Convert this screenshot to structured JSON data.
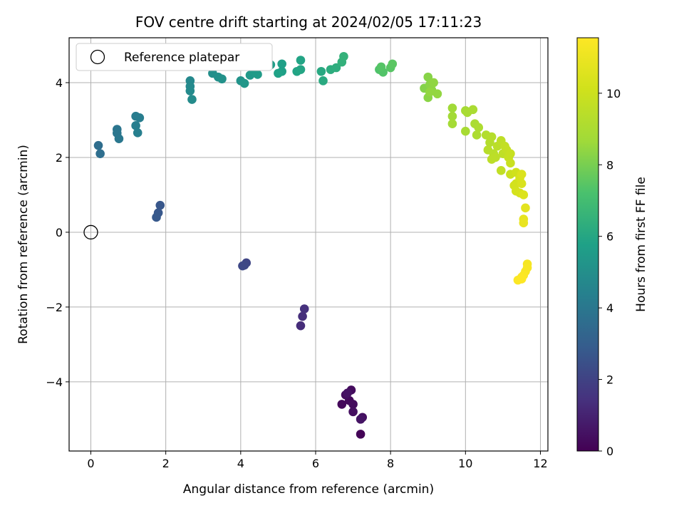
{
  "chart_data": {
    "type": "scatter",
    "title": "FOV centre drift starting at 2024/02/05 17:11:23",
    "xlabel": "Angular distance from reference (arcmin)",
    "ylabel": "Rotation from reference (arcmin)",
    "xlim": [
      -0.58,
      12.2
    ],
    "ylim": [
      -5.85,
      5.2
    ],
    "xticks": [
      0,
      2,
      4,
      6,
      8,
      10,
      12
    ],
    "yticks": [
      -4,
      -2,
      0,
      2,
      4
    ],
    "grid": true,
    "legend": {
      "location": "upper-left",
      "entries": [
        "Reference platepar"
      ]
    },
    "reference_point": {
      "x": 0,
      "y": 0
    },
    "colorbar": {
      "label": "Hours from first FF file",
      "colormap": "viridis",
      "range": [
        0,
        11.55
      ],
      "ticks": [
        0,
        2,
        4,
        6,
        8,
        10
      ]
    },
    "points": [
      [
        7.2,
        -5.4,
        0.1
      ],
      [
        6.7,
        -4.6,
        0.2
      ],
      [
        6.9,
        -4.5,
        0.25
      ],
      [
        6.95,
        -4.22,
        0.3
      ],
      [
        7.0,
        -4.6,
        0.32
      ],
      [
        6.8,
        -4.35,
        0.35
      ],
      [
        7.0,
        -4.8,
        0.4
      ],
      [
        7.25,
        -4.95,
        0.45
      ],
      [
        6.85,
        -4.3,
        0.5
      ],
      [
        7.2,
        -5.0,
        0.55
      ],
      [
        5.6,
        -2.5,
        1.3
      ],
      [
        5.65,
        -2.25,
        1.35
      ],
      [
        5.7,
        -2.05,
        1.4
      ],
      [
        4.15,
        -0.82,
        2.1
      ],
      [
        4.1,
        -0.88,
        2.15
      ],
      [
        4.05,
        -0.9,
        2.2
      ],
      [
        1.85,
        0.72,
        2.7
      ],
      [
        1.8,
        0.52,
        2.75
      ],
      [
        1.75,
        0.4,
        2.8
      ],
      [
        0.2,
        2.32,
        3.6
      ],
      [
        0.25,
        2.1,
        3.65
      ],
      [
        0.7,
        2.75,
        3.9
      ],
      [
        0.7,
        2.65,
        3.95
      ],
      [
        0.75,
        2.5,
        4.0
      ],
      [
        1.2,
        3.1,
        4.2
      ],
      [
        1.3,
        3.06,
        4.25
      ],
      [
        1.2,
        2.85,
        4.3
      ],
      [
        1.25,
        2.66,
        4.35
      ],
      [
        2.65,
        4.05,
        4.7
      ],
      [
        2.65,
        3.9,
        4.75
      ],
      [
        2.65,
        3.78,
        4.8
      ],
      [
        2.7,
        3.55,
        4.85
      ],
      [
        3.25,
        4.25,
        5.0
      ],
      [
        3.4,
        4.15,
        5.05
      ],
      [
        3.5,
        4.1,
        5.1
      ],
      [
        4.0,
        4.05,
        5.2
      ],
      [
        4.1,
        3.98,
        5.3
      ],
      [
        4.25,
        4.2,
        5.4
      ],
      [
        4.45,
        4.22,
        5.5
      ],
      [
        4.35,
        4.3,
        5.5
      ],
      [
        4.8,
        4.48,
        5.6
      ],
      [
        5.1,
        4.5,
        5.7
      ],
      [
        5.1,
        4.3,
        5.75
      ],
      [
        5.0,
        4.25,
        5.8
      ],
      [
        5.5,
        4.3,
        5.9
      ],
      [
        5.6,
        4.6,
        5.9
      ],
      [
        5.6,
        4.35,
        5.95
      ],
      [
        6.15,
        4.3,
        6.1
      ],
      [
        6.2,
        4.05,
        6.15
      ],
      [
        6.4,
        4.35,
        6.25
      ],
      [
        6.55,
        4.4,
        6.3
      ],
      [
        6.7,
        4.55,
        6.45
      ],
      [
        6.75,
        4.7,
        6.5
      ],
      [
        7.7,
        4.35,
        7.3
      ],
      [
        7.8,
        4.28,
        7.35
      ],
      [
        7.75,
        4.42,
        7.4
      ],
      [
        8.0,
        4.4,
        7.45
      ],
      [
        8.05,
        4.5,
        7.5
      ],
      [
        8.9,
        3.85,
        8.2
      ],
      [
        9.0,
        4.15,
        8.25
      ],
      [
        9.05,
        3.95,
        8.3
      ],
      [
        9.0,
        3.6,
        8.3
      ],
      [
        9.1,
        3.8,
        8.35
      ],
      [
        9.15,
        4.0,
        8.4
      ],
      [
        9.25,
        3.7,
        8.45
      ],
      [
        9.05,
        3.75,
        8.45
      ],
      [
        9.65,
        3.32,
        8.7
      ],
      [
        9.65,
        3.1,
        8.75
      ],
      [
        9.65,
        2.9,
        8.8
      ],
      [
        10.0,
        3.25,
        8.85
      ],
      [
        10.05,
        3.2,
        8.9
      ],
      [
        10.0,
        2.7,
        8.9
      ],
      [
        10.2,
        3.28,
        8.95
      ],
      [
        10.25,
        2.9,
        9.0
      ],
      [
        10.35,
        2.8,
        9.05
      ],
      [
        10.3,
        2.6,
        9.05
      ],
      [
        10.55,
        2.6,
        9.2
      ],
      [
        10.65,
        2.4,
        9.25
      ],
      [
        10.7,
        2.55,
        9.3
      ],
      [
        10.6,
        2.2,
        9.35
      ],
      [
        10.75,
        2.1,
        9.4
      ],
      [
        10.85,
        2.3,
        9.45
      ],
      [
        10.7,
        1.95,
        9.5
      ],
      [
        10.8,
        2.0,
        9.5
      ],
      [
        10.95,
        2.45,
        9.55
      ],
      [
        11.0,
        2.1,
        9.6
      ],
      [
        10.95,
        1.65,
        9.65
      ],
      [
        11.05,
        2.3,
        9.7
      ],
      [
        11.1,
        2.2,
        9.75
      ],
      [
        11.15,
        2.0,
        9.8
      ],
      [
        11.2,
        2.1,
        9.85
      ],
      [
        11.2,
        1.85,
        9.9
      ],
      [
        11.2,
        1.55,
        9.95
      ],
      [
        11.35,
        1.6,
        10.1
      ],
      [
        11.35,
        1.3,
        10.15
      ],
      [
        11.3,
        1.25,
        10.2
      ],
      [
        11.35,
        1.1,
        10.25
      ],
      [
        11.45,
        1.45,
        10.3
      ],
      [
        11.45,
        1.05,
        10.3
      ],
      [
        11.5,
        1.3,
        10.4
      ],
      [
        11.5,
        1.55,
        10.45
      ],
      [
        11.55,
        1.0,
        10.5
      ],
      [
        11.6,
        0.65,
        10.7
      ],
      [
        11.55,
        0.35,
        10.8
      ],
      [
        11.55,
        0.25,
        10.9
      ],
      [
        11.65,
        -0.85,
        11.3
      ],
      [
        11.65,
        -0.95,
        11.35
      ],
      [
        11.6,
        -1.05,
        11.4
      ],
      [
        11.55,
        -1.15,
        11.45
      ],
      [
        11.5,
        -1.2,
        11.5
      ],
      [
        11.4,
        -1.28,
        11.5
      ],
      [
        11.5,
        -1.25,
        11.55
      ]
    ]
  }
}
